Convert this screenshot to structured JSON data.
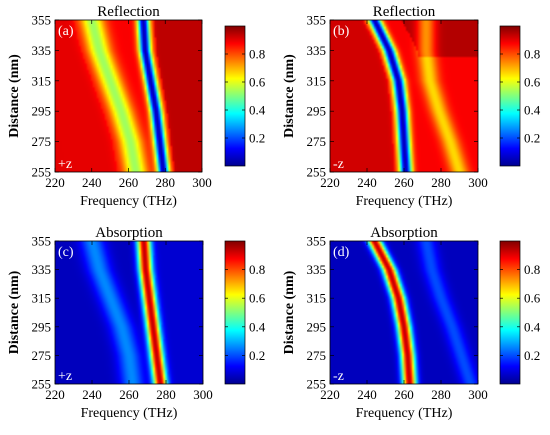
{
  "chart_data": [
    {
      "type": "heatmap",
      "panel": "(a)",
      "title": "Reflection",
      "direction": "+z",
      "xlabel": "Frequency (THz)",
      "ylabel": "Distance (nm)",
      "xlim": [
        220,
        300
      ],
      "ylim": [
        255,
        355
      ],
      "xticks": [
        "220",
        "240",
        "260",
        "280",
        "300"
      ],
      "yticks": [
        "255",
        "275",
        "295",
        "315",
        "335",
        "355"
      ],
      "colorbar": {
        "range": [
          0,
          1
        ],
        "ticks": [
          "0.2",
          "0.4",
          "0.6",
          "0.8"
        ]
      },
      "colormap": "jet",
      "features": [
        {
          "kind": "dip",
          "description": "deep reflection minimum (~0.05)",
          "points": [
            [
              268,
              355
            ],
            [
              269,
              335
            ],
            [
              272,
              315
            ],
            [
              275,
              295
            ],
            [
              277,
              275
            ],
            [
              279,
              255
            ]
          ]
        },
        {
          "kind": "shallow-dip",
          "description": "secondary reflection dip (~0.4-0.6)",
          "points": [
            [
              240,
              355
            ],
            [
              244,
              335
            ],
            [
              250,
              315
            ],
            [
              256,
              295
            ],
            [
              261,
              275
            ],
            [
              264,
              255
            ]
          ]
        }
      ]
    },
    {
      "type": "heatmap",
      "panel": "(b)",
      "title": "Reflection",
      "direction": "-z",
      "xlabel": "Frequency (THz)",
      "ylabel": "Distance (nm)",
      "xlim": [
        220,
        300
      ],
      "ylim": [
        255,
        355
      ],
      "xticks": [
        "220",
        "240",
        "260",
        "280",
        "300"
      ],
      "yticks": [
        "255",
        "275",
        "295",
        "315",
        "335",
        "355"
      ],
      "colorbar": {
        "range": [
          0,
          1
        ],
        "ticks": [
          "0.2",
          "0.4",
          "0.6",
          "0.8"
        ]
      },
      "colormap": "jet",
      "features": [
        {
          "kind": "dip",
          "description": "deep reflection minimum (~0.05)",
          "points": [
            [
              244,
              355
            ],
            [
              252,
              335
            ],
            [
              257,
              315
            ],
            [
              259,
              295
            ],
            [
              260,
              275
            ],
            [
              261,
              255
            ]
          ]
        },
        {
          "kind": "shallow-dip",
          "description": "weak reflection dip (~0.65)",
          "points": [
            [
              272,
              335
            ],
            [
              274,
              315
            ],
            [
              279,
              295
            ],
            [
              285,
              275
            ],
            [
              290,
              255
            ]
          ]
        }
      ]
    },
    {
      "type": "heatmap",
      "panel": "(c)",
      "title": "Absorption",
      "direction": "+z",
      "xlabel": "Frequency (THz)",
      "ylabel": "Distance (nm)",
      "xlim": [
        220,
        300
      ],
      "ylim": [
        255,
        355
      ],
      "xticks": [
        "220",
        "240",
        "260",
        "280",
        "300"
      ],
      "yticks": [
        "255",
        "275",
        "295",
        "315",
        "335",
        "355"
      ],
      "colorbar": {
        "range": [
          0,
          1
        ],
        "ticks": [
          "0.2",
          "0.4",
          "0.6",
          "0.8"
        ]
      },
      "colormap": "jet",
      "features": [
        {
          "kind": "peak",
          "description": "strong absorption peak (~0.95)",
          "points": [
            [
              268,
              355
            ],
            [
              269,
              335
            ],
            [
              271,
              315
            ],
            [
              273,
              295
            ],
            [
              275,
              275
            ],
            [
              277,
              255
            ]
          ]
        },
        {
          "kind": "weak-band",
          "description": "weak absorption band (~0.25)",
          "points": [
            [
              240,
              355
            ],
            [
              244,
              335
            ],
            [
              250,
              315
            ],
            [
              256,
              295
            ],
            [
              260,
              275
            ],
            [
              262,
              255
            ]
          ]
        }
      ]
    },
    {
      "type": "heatmap",
      "panel": "(d)",
      "title": "Absorption",
      "direction": "-z",
      "xlabel": "Frequency (THz)",
      "ylabel": "Distance (nm)",
      "xlim": [
        220,
        300
      ],
      "ylim": [
        255,
        355
      ],
      "xticks": [
        "220",
        "240",
        "260",
        "280",
        "300"
      ],
      "yticks": [
        "255",
        "275",
        "295",
        "315",
        "335",
        "355"
      ],
      "colorbar": {
        "range": [
          0,
          1
        ],
        "ticks": [
          "0.2",
          "0.4",
          "0.6",
          "0.8"
        ]
      },
      "colormap": "jet",
      "features": [
        {
          "kind": "peak",
          "description": "strong absorption peak (~0.95)",
          "points": [
            [
              244,
              355
            ],
            [
              252,
              335
            ],
            [
              257,
              315
            ],
            [
              260,
              295
            ],
            [
              262,
              275
            ],
            [
              263,
              255
            ]
          ]
        },
        {
          "kind": "weak-band",
          "description": "weak absorption band (~0.2)",
          "points": [
            [
              272,
              355
            ],
            [
              275,
              335
            ],
            [
              280,
              315
            ],
            [
              286,
              295
            ],
            [
              291,
              275
            ],
            [
              296,
              255
            ]
          ]
        }
      ]
    }
  ]
}
